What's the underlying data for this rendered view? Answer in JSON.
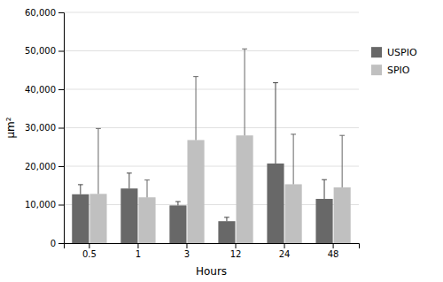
{
  "chart_data": {
    "type": "bar",
    "xlabel": "Hours",
    "ylabel": "μm²",
    "categories": [
      "0.5",
      "1",
      "3",
      "12",
      "24",
      "48"
    ],
    "series": [
      {
        "name": "USPIO",
        "color": "#686868",
        "values": [
          12700,
          14200,
          9800,
          5700,
          20700,
          11500
        ],
        "errors": [
          2500,
          4000,
          1000,
          1000,
          21000,
          5000
        ]
      },
      {
        "name": "SPIO",
        "color": "#c0c0c0",
        "values": [
          12800,
          11900,
          26800,
          28000,
          15300,
          14500
        ],
        "errors": [
          17000,
          4500,
          16500,
          22500,
          13000,
          13500
        ]
      }
    ],
    "ylim": [
      0,
      60000
    ],
    "yticks": [
      0,
      {
        "value": 10000,
        "label": "10,000"
      },
      {
        "value": 20000,
        "label": "20,000"
      },
      {
        "value": 30000,
        "label": "30,000"
      },
      {
        "value": 40000,
        "label": "40,000"
      },
      {
        "value": 50000,
        "label": "50,000"
      },
      {
        "value": 60000,
        "label": "60,000"
      }
    ],
    "grid": true,
    "legend": "right"
  }
}
